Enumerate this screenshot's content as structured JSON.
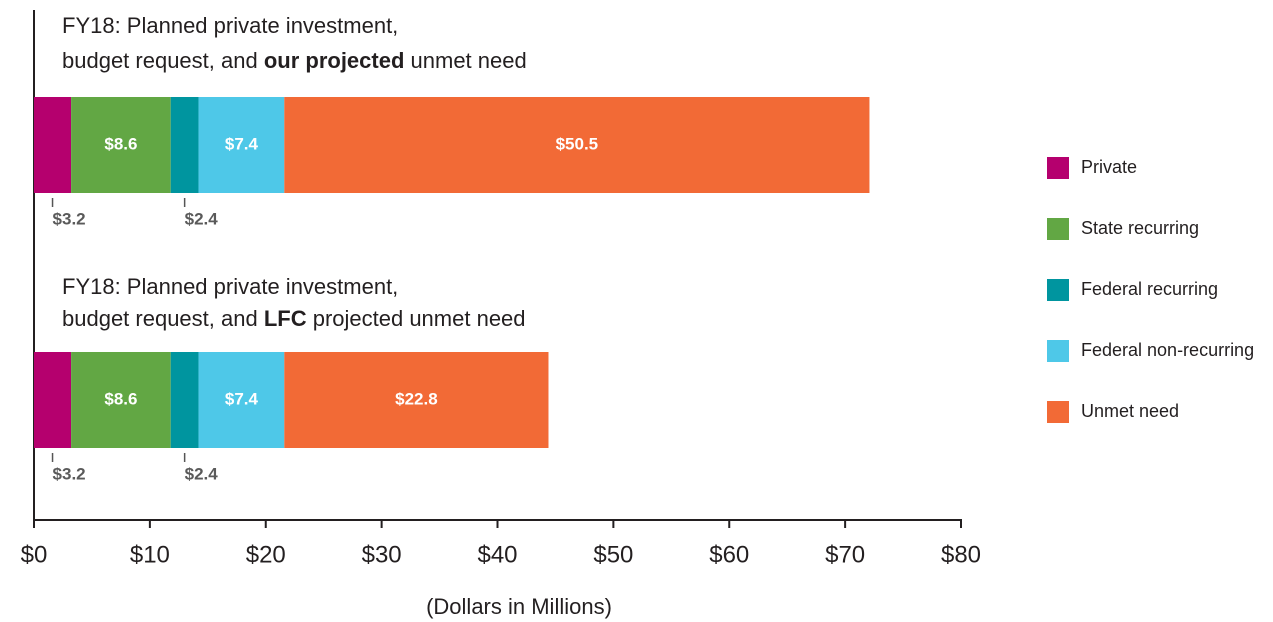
{
  "chart_data": {
    "type": "stacked-bar-horizontal",
    "categories": [
      {
        "lines": [
          [
            {
              "text": "FY18: Planned private investment,",
              "bold": false
            }
          ],
          [
            {
              "text": "budget request, and ",
              "bold": false
            },
            {
              "text": "our projected",
              "bold": true
            },
            {
              "text": " unmet need",
              "bold": false
            }
          ]
        ]
      },
      {
        "lines": [
          [
            {
              "text": "FY18: Planned private investment,",
              "bold": false
            }
          ],
          [
            {
              "text": "budget request, and ",
              "bold": false
            },
            {
              "text": "LFC",
              "bold": true
            },
            {
              "text": " projected unmet need",
              "bold": false
            }
          ]
        ]
      }
    ],
    "series": [
      {
        "name": "Private",
        "color": "#b5006e",
        "values": [
          3.2,
          3.2
        ],
        "value_labels": [
          "$3.2",
          "$3.2"
        ],
        "label_position": "below"
      },
      {
        "name": "State recurring",
        "color": "#62a744",
        "values": [
          8.6,
          8.6
        ],
        "value_labels": [
          "$8.6",
          "$8.6"
        ],
        "label_position": "inside"
      },
      {
        "name": "Federal recurring",
        "color": "#00959f",
        "values": [
          2.4,
          2.4
        ],
        "value_labels": [
          "$2.4",
          "$2.4"
        ],
        "label_position": "below"
      },
      {
        "name": "Federal non-recurring",
        "color": "#4ec8e8",
        "values": [
          7.4,
          7.4
        ],
        "value_labels": [
          "$7.4",
          "$7.4"
        ],
        "label_position": "inside"
      },
      {
        "name": "Unmet need",
        "color": "#f26a36",
        "values": [
          50.5,
          22.8
        ],
        "value_labels": [
          "$50.5",
          "$22.8"
        ],
        "label_position": "inside"
      }
    ],
    "xlim": [
      0,
      80
    ],
    "xticks": [
      {
        "value": 0,
        "label": "$0"
      },
      {
        "value": 10,
        "label": "$10"
      },
      {
        "value": 20,
        "label": "$20"
      },
      {
        "value": 30,
        "label": "$30"
      },
      {
        "value": 40,
        "label": "$40"
      },
      {
        "value": 50,
        "label": "$50"
      },
      {
        "value": 60,
        "label": "$60"
      },
      {
        "value": 70,
        "label": "$70"
      },
      {
        "value": 80,
        "label": "$80"
      }
    ],
    "xlabel": "(Dollars in Millions)",
    "legend": "right"
  }
}
